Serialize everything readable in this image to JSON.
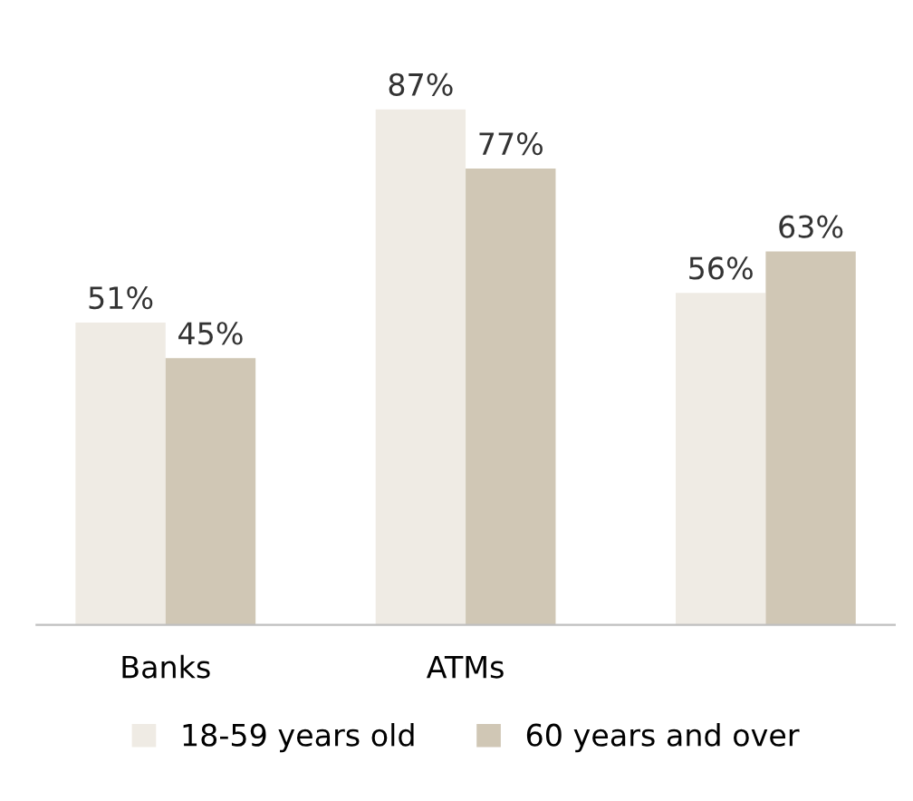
{
  "chart_data": {
    "type": "bar",
    "categories": [
      "Banks",
      "ATMs",
      null
    ],
    "series": [
      {
        "name": "18-59 years old",
        "color": "#efebe4",
        "values": [
          51,
          87,
          56
        ],
        "value_labels": [
          "51%",
          "87%",
          "56%"
        ]
      },
      {
        "name": "60 years and over",
        "color": "#d0c7b5",
        "values": [
          45,
          77,
          63
        ],
        "value_labels": [
          "45%",
          "77%",
          "63%"
        ]
      }
    ],
    "legend": "bottom",
    "grid": false
  }
}
